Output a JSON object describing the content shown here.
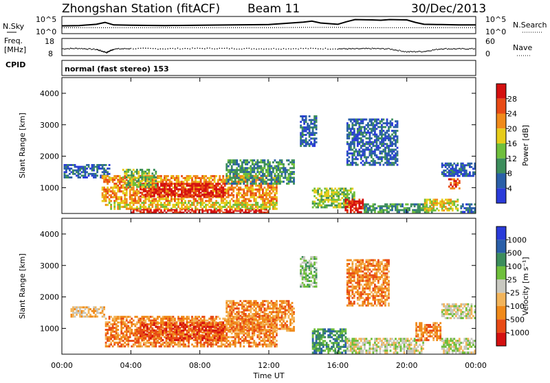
{
  "header": {
    "station": "Zhongshan Station (fitACF)",
    "beam": "Beam 11",
    "date": "30/Dec/2013"
  },
  "nsky_panel": {
    "left_label": "N.Sky",
    "right_label": "N.Search",
    "ticks": [
      "10^5",
      "10^0"
    ]
  },
  "freq_panel": {
    "label_1": "Freq.",
    "label_2": "[MHz]",
    "left_ticks": [
      "18",
      "8"
    ],
    "right_label": "Nave",
    "right_ticks": [
      "60",
      "0"
    ]
  },
  "cpid": {
    "label": "CPID",
    "mode": "normal (fast stereo) 153"
  },
  "colors": {
    "power_scale": [
      "#2a3bd9",
      "#2a5fa8",
      "#3c8d5c",
      "#6fbf3c",
      "#e6cc1a",
      "#f08a1a",
      "#e84a15",
      "#d41010"
    ],
    "velocity_scale": [
      "#d41010",
      "#e84a15",
      "#f08a1a",
      "#f2b45a",
      "#c8c8c0",
      "#6fbf3c",
      "#3c8d5c",
      "#2a5fa8",
      "#2a3bd9"
    ]
  },
  "chart_data": [
    {
      "type": "line",
      "panel": "noise",
      "x_range_hours": [
        0,
        24
      ],
      "series": [
        {
          "style": "solid",
          "x": [
            0,
            1,
            2,
            2.5,
            3,
            4,
            6,
            8,
            10,
            12,
            13,
            14,
            14.5,
            15,
            16,
            16.5,
            17,
            18,
            18.5,
            19,
            20,
            20.5,
            21,
            22,
            23,
            24
          ],
          "values": [
            2.5,
            2.6,
            3.0,
            3.6,
            2.8,
            2.7,
            2.6,
            2.7,
            2.8,
            2.9,
            3.3,
            3.7,
            4.0,
            3.4,
            3.0,
            3.8,
            4.5,
            4.4,
            4.3,
            4.5,
            4.4,
            3.6,
            3.0,
            2.9,
            2.8,
            2.8
          ]
        },
        {
          "style": "dotted",
          "x": [
            0,
            2,
            4,
            6,
            8,
            10,
            12,
            14,
            16,
            18,
            20,
            22,
            24
          ],
          "values": [
            1.9,
            1.9,
            1.9,
            1.9,
            1.9,
            1.9,
            1.9,
            2.0,
            2.0,
            1.9,
            1.9,
            1.9,
            1.9
          ]
        }
      ]
    },
    {
      "type": "scatter",
      "panel": "frequency",
      "x_range_hours": [
        0,
        24
      ],
      "ylim": [
        8,
        18
      ],
      "series": [
        {
          "style": "dots",
          "x": [
            0,
            1,
            2,
            2.6,
            3,
            4,
            6,
            8,
            10,
            12,
            14,
            16,
            17,
            18,
            19,
            20,
            21,
            22,
            23,
            24
          ],
          "values": [
            12.0,
            12.2,
            11.6,
            9.8,
            11.8,
            12.1,
            12.0,
            12.2,
            12.1,
            12.0,
            12.1,
            12.0,
            11.9,
            12.1,
            11.9,
            10.2,
            10.4,
            12.0,
            11.9,
            12.0
          ]
        }
      ]
    },
    {
      "type": "heatmap",
      "panel": "power",
      "x_tick_labels": [
        "00:00",
        "04:00",
        "08:00",
        "12:00",
        "16:00",
        "20:00",
        "00:00"
      ],
      "x_range_hours": [
        0,
        24
      ],
      "ylabel": "Slant Range [km]",
      "ylim": [
        180,
        4500
      ],
      "y_tick_labels": [
        "1000",
        "2000",
        "3000",
        "4000"
      ],
      "colorbar_label": "Power [dB]",
      "colorbar_ticks": [
        "28",
        "24",
        "20",
        "16",
        "12",
        "8",
        "4"
      ],
      "regions": [
        {
          "t0": 0.1,
          "t1": 2.8,
          "r0": 1300,
          "r1": 1750,
          "level": 1
        },
        {
          "t0": 2.3,
          "t1": 12.5,
          "r0": 550,
          "r1": 1400,
          "level": 5
        },
        {
          "t0": 4.5,
          "t1": 9.5,
          "r0": 700,
          "r1": 1150,
          "level": 7
        },
        {
          "t0": 2.5,
          "t1": 12.5,
          "r0": 300,
          "r1": 550,
          "level": 4
        },
        {
          "t0": 4.0,
          "t1": 12.0,
          "r0": 200,
          "r1": 320,
          "level": 7
        },
        {
          "t0": 3.5,
          "t1": 5.5,
          "r0": 1000,
          "r1": 1600,
          "level": 3
        },
        {
          "t0": 9.5,
          "t1": 13.5,
          "r0": 1100,
          "r1": 1900,
          "level": 2
        },
        {
          "t0": 13.8,
          "t1": 14.8,
          "r0": 2300,
          "r1": 3300,
          "level": 1
        },
        {
          "t0": 14.5,
          "t1": 17.0,
          "r0": 350,
          "r1": 1000,
          "level": 3
        },
        {
          "t0": 16.4,
          "t1": 17.5,
          "r0": 200,
          "r1": 650,
          "level": 7
        },
        {
          "t0": 16.5,
          "t1": 19.5,
          "r0": 1700,
          "r1": 3200,
          "level": 1
        },
        {
          "t0": 17.5,
          "t1": 21.5,
          "r0": 200,
          "r1": 500,
          "level": 2
        },
        {
          "t0": 21.0,
          "t1": 23.0,
          "r0": 250,
          "r1": 650,
          "level": 4
        },
        {
          "t0": 22.4,
          "t1": 23.1,
          "r0": 950,
          "r1": 1300,
          "level": 6
        },
        {
          "t0": 22.0,
          "t1": 24.0,
          "r0": 1350,
          "r1": 1800,
          "level": 1
        },
        {
          "t0": 23.1,
          "t1": 24.0,
          "r0": 200,
          "r1": 500,
          "level": 1
        }
      ]
    },
    {
      "type": "heatmap",
      "panel": "velocity",
      "x_tick_labels": [
        "00:00",
        "04:00",
        "08:00",
        "12:00",
        "16:00",
        "20:00",
        "00:00"
      ],
      "x_range_hours": [
        0,
        24
      ],
      "xlabel": "Time UT",
      "ylabel": "Slant Range [km]",
      "ylim": [
        180,
        4500
      ],
      "y_tick_labels": [
        "1000",
        "2000",
        "3000",
        "4000"
      ],
      "colorbar_label": "Velocity [m s⁻¹]",
      "colorbar_ticks": [
        "1000",
        "500",
        "100",
        "25",
        "-25",
        "-100",
        "-500",
        "-1000"
      ],
      "regions": [
        {
          "t0": 0.5,
          "t1": 2.5,
          "r0": 1350,
          "r1": 1700,
          "level": 3
        },
        {
          "t0": 2.5,
          "t1": 12.5,
          "r0": 400,
          "r1": 1400,
          "level": 2
        },
        {
          "t0": 4.5,
          "t1": 9.5,
          "r0": 600,
          "r1": 1200,
          "level": 1
        },
        {
          "t0": 9.5,
          "t1": 13.5,
          "r0": 900,
          "r1": 1900,
          "level": 2
        },
        {
          "t0": 13.8,
          "t1": 14.8,
          "r0": 2300,
          "r1": 3300,
          "level": 5
        },
        {
          "t0": 14.5,
          "t1": 16.5,
          "r0": 200,
          "r1": 1000,
          "level": 6
        },
        {
          "t0": 16.5,
          "t1": 19.0,
          "r0": 1700,
          "r1": 3200,
          "level": 2
        },
        {
          "t0": 16.5,
          "t1": 21.0,
          "r0": 200,
          "r1": 700,
          "level": 4
        },
        {
          "t0": 20.5,
          "t1": 22.0,
          "r0": 600,
          "r1": 1200,
          "level": 2
        },
        {
          "t0": 22.0,
          "t1": 24.0,
          "r0": 200,
          "r1": 700,
          "level": 4
        },
        {
          "t0": 22.0,
          "t1": 24.0,
          "r0": 1300,
          "r1": 1800,
          "level": 4
        }
      ]
    }
  ]
}
